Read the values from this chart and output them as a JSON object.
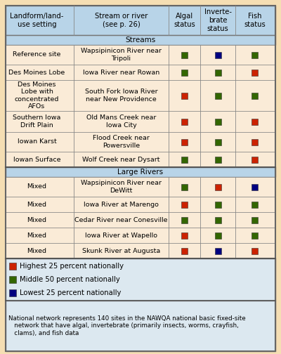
{
  "outer_bg": "#f5deb3",
  "header_bg": "#b8d4e8",
  "body_bg": "#faebd7",
  "legend_bg": "#dce8f0",
  "section_bg": "#b8d4e8",
  "border_color": "#888888",
  "RED": "#cc2200",
  "GREEN": "#336600",
  "BLUE": "#000080",
  "headers": [
    "Landform/land-\nuse setting",
    "Stream or river\n(see p. 26)",
    "Algal\nstatus",
    "Inverte-\nbrate\nstatus",
    "Fish\nstatus"
  ],
  "streams_section": "Streams",
  "large_rivers_section": "Large Rivers",
  "rows": [
    {
      "section": "streams",
      "landform": "Reference site",
      "stream": "Wapsipinicon River near\nTripoli",
      "algal": "G",
      "invert": "B",
      "fish": "G"
    },
    {
      "section": "streams",
      "landform": "Des Moines Lobe",
      "stream": "Iowa River near Rowan",
      "algal": "G",
      "invert": "G",
      "fish": "R"
    },
    {
      "section": "streams",
      "landform": "Des Moines\nLobe with\nconcentrated\nAFOs",
      "stream": "South Fork Iowa River\nnear New Providence",
      "algal": "R",
      "invert": "G",
      "fish": "G"
    },
    {
      "section": "streams",
      "landform": "Southern Iowa\nDrift Plain",
      "stream": "Old Mans Creek near\nIowa City",
      "algal": "R",
      "invert": "G",
      "fish": "R"
    },
    {
      "section": "streams",
      "landform": "Iowan Karst",
      "stream": "Flood Creek near\nPowersville",
      "algal": "R",
      "invert": "G",
      "fish": "R"
    },
    {
      "section": "streams",
      "landform": "Iowan Surface",
      "stream": "Wolf Creek near Dysart",
      "algal": "G",
      "invert": "G",
      "fish": "R"
    },
    {
      "section": "large_rivers",
      "landform": "Mixed",
      "stream": "Wapsipinicon River near\nDeWitt",
      "algal": "G",
      "invert": "R",
      "fish": "B"
    },
    {
      "section": "large_rivers",
      "landform": "Mixed",
      "stream": "Iowa River at Marengo",
      "algal": "R",
      "invert": "G",
      "fish": "G"
    },
    {
      "section": "large_rivers",
      "landform": "Mixed",
      "stream": "Cedar River near Conesville",
      "algal": "G",
      "invert": "G",
      "fish": "G"
    },
    {
      "section": "large_rivers",
      "landform": "Mixed",
      "stream": "Iowa River at Wapello",
      "algal": "R",
      "invert": "G",
      "fish": "G"
    },
    {
      "section": "large_rivers",
      "landform": "Mixed",
      "stream": "Skunk River at Augusta",
      "algal": "R",
      "invert": "B",
      "fish": "R"
    }
  ],
  "legend_items": [
    {
      "color": "R",
      "label": "Highest 25 percent nationally"
    },
    {
      "color": "G",
      "label": "Middle 50 percent nationally"
    },
    {
      "color": "B",
      "label": "Lowest 25 percent nationally"
    }
  ],
  "footer_text": "National network represents 140 sites in the NAWQA national basic fixed-site\n   network that have algal, invertebrate (primarily insects, worms, crayfish,\n   clams), and fish data"
}
